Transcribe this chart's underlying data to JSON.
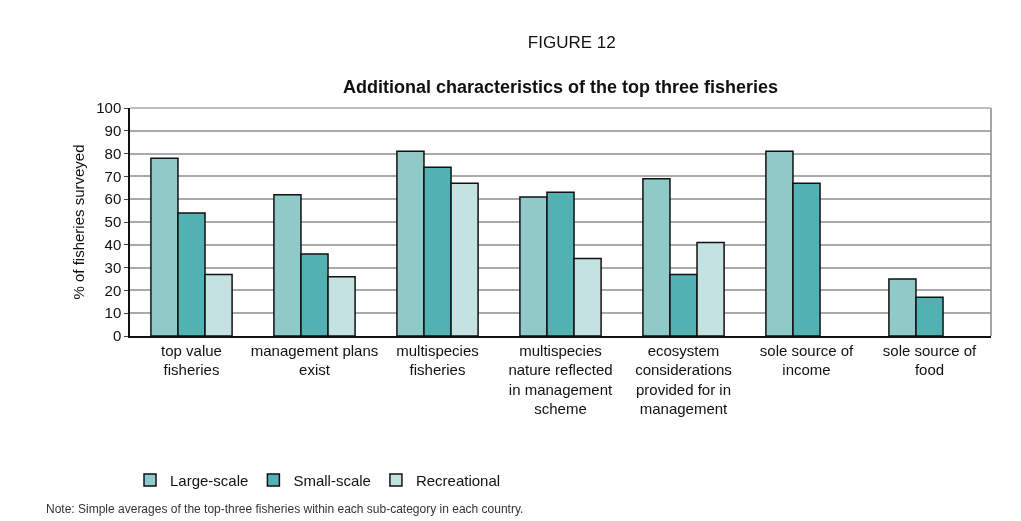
{
  "chart_data": {
    "type": "bar",
    "title": "FIGURE 12",
    "subtitle": "Additional characteristics of the top three fisheries",
    "ylabel": "% of fisheries surveyed",
    "categories": [
      "top value fisheries",
      "management plans exist",
      "multispecies fisheries",
      "multispecies nature reflected in management scheme",
      "ecosystem considerations provided for in management",
      "sole source of income",
      "sole source of food"
    ],
    "series": [
      {
        "name": "Large-scale",
        "color": "#8fcac9",
        "values": [
          78,
          62,
          81,
          61,
          69,
          81,
          25
        ]
      },
      {
        "name": "Small-scale",
        "color": "#52b1b2",
        "values": [
          54,
          36,
          74,
          63,
          27,
          67,
          17
        ]
      },
      {
        "name": "Recreational",
        "color": "#c5e2e3",
        "values": [
          27,
          26,
          67,
          34,
          41,
          null,
          null
        ]
      }
    ],
    "ylim": [
      0,
      100
    ],
    "yticks": [
      0,
      10,
      20,
      30,
      40,
      50,
      60,
      70,
      80,
      90,
      100
    ],
    "grid": "y",
    "legend": "bottom left",
    "annotations": [
      "Note: Simple averages of the top-three fisheries within each sub-category in each country."
    ]
  }
}
